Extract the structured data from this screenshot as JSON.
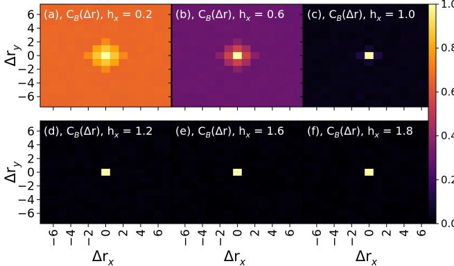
{
  "chart_data": {
    "type": "heatmap",
    "xlabel": "Δr",
    "xlabel_sub": "x",
    "ylabel": "Δr",
    "ylabel_sub": "y",
    "x_ticks": [
      "−6",
      "−4",
      "−2",
      "0",
      "2",
      "4",
      "6"
    ],
    "y_ticks": [
      "6",
      "4",
      "2",
      "0",
      "−2",
      "−4",
      "−6"
    ],
    "range": [
      -7,
      7
    ],
    "colormap": "inferno",
    "colorbar": {
      "ticks": [
        "1.0",
        "0.8",
        "0.6",
        "0.4",
        "0.2",
        "0.0"
      ],
      "range": [
        0,
        1
      ]
    },
    "panels": [
      {
        "label": "(a)",
        "title": "(a), C_B(Δr),  h_x = 0.2",
        "h_x": 0.2,
        "background": 0.66,
        "center": {
          "0,0": 1.0,
          "1,0": 0.87,
          "-1,0": 0.87,
          "0,1": 0.87,
          "0,-1": 0.87,
          "1,1": 0.8,
          "1,-1": 0.8,
          "-1,1": 0.8,
          "-1,-1": 0.8,
          "2,0": 0.74,
          "-2,0": 0.74,
          "0,2": 0.74,
          "0,-2": 0.74
        }
      },
      {
        "label": "(b)",
        "title": "(b), C_B(Δr),  h_x = 0.6",
        "h_x": 0.6,
        "background": 0.3,
        "center": {
          "0,0": 1.0,
          "1,0": 0.55,
          "-1,0": 0.55,
          "0,1": 0.55,
          "0,-1": 0.55,
          "1,1": 0.44,
          "1,-1": 0.44,
          "-1,1": 0.44,
          "-1,-1": 0.44,
          "2,0": 0.37,
          "-2,0": 0.37,
          "0,2": 0.37,
          "0,-2": 0.37
        }
      },
      {
        "label": "(c)",
        "title": "(c), C_B(Δr),  h_x = 1.0",
        "h_x": 1.0,
        "background": 0.03,
        "center": {
          "0,0": 1.0,
          "1,0": 0.12,
          "-1,0": 0.12,
          "0,1": 0.08,
          "0,-1": 0.08
        }
      },
      {
        "label": "(d)",
        "title": "(d), C_B(Δr),  h_x = 1.2",
        "h_x": 1.2,
        "background": 0.01,
        "center": {
          "0,0": 1.0
        }
      },
      {
        "label": "(e)",
        "title": "(e), C_B(Δr),  h_x = 1.6",
        "h_x": 1.6,
        "background": 0.005,
        "center": {
          "0,0": 1.0
        }
      },
      {
        "label": "(f)",
        "title": "(f), C_B(Δr),  h_x = 1.8",
        "h_x": 1.8,
        "background": 0.005,
        "center": {
          "0,0": 1.0
        }
      }
    ]
  }
}
